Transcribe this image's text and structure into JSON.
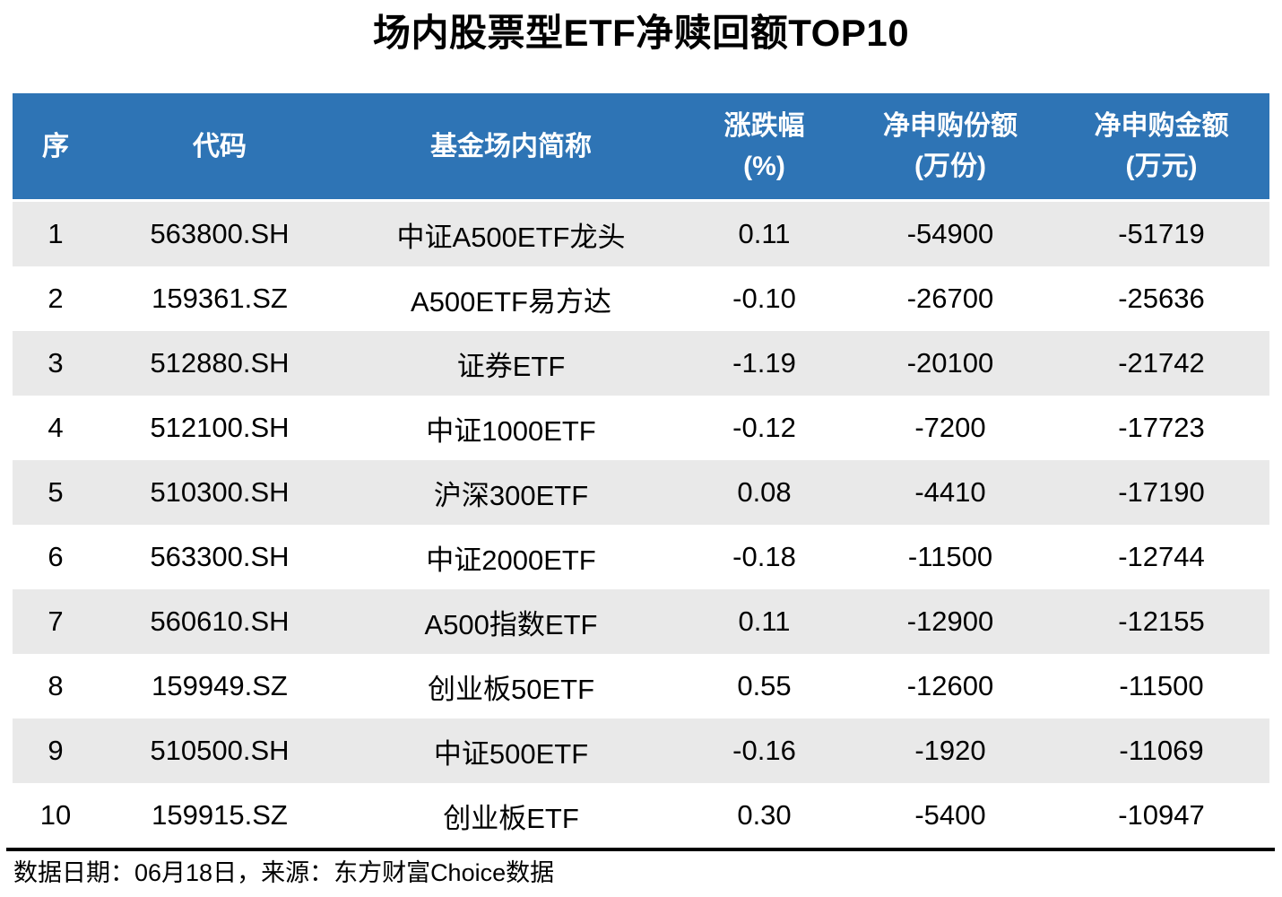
{
  "title": "场内股票型ETF净赎回额TOP10",
  "table": {
    "headers": [
      {
        "line1": "序",
        "line2": ""
      },
      {
        "line1": "代码",
        "line2": ""
      },
      {
        "line1": "基金场内简称",
        "line2": ""
      },
      {
        "line1": "涨跌幅",
        "line2": "(%)"
      },
      {
        "line1": "净申购份额",
        "line2": "(万份)"
      },
      {
        "line1": "净申购金额",
        "line2": "(万元)"
      }
    ],
    "rows": [
      {
        "seq": "1",
        "code": "563800.SH",
        "name": "中证A500ETF龙头",
        "chg": "0.11",
        "shares": "-54900",
        "amount": "-51719"
      },
      {
        "seq": "2",
        "code": "159361.SZ",
        "name": "A500ETF易方达",
        "chg": "-0.10",
        "shares": "-26700",
        "amount": "-25636"
      },
      {
        "seq": "3",
        "code": "512880.SH",
        "name": "证券ETF",
        "chg": "-1.19",
        "shares": "-20100",
        "amount": "-21742"
      },
      {
        "seq": "4",
        "code": "512100.SH",
        "name": "中证1000ETF",
        "chg": "-0.12",
        "shares": "-7200",
        "amount": "-17723"
      },
      {
        "seq": "5",
        "code": "510300.SH",
        "name": "沪深300ETF",
        "chg": "0.08",
        "shares": "-4410",
        "amount": "-17190"
      },
      {
        "seq": "6",
        "code": "563300.SH",
        "name": "中证2000ETF",
        "chg": "-0.18",
        "shares": "-11500",
        "amount": "-12744"
      },
      {
        "seq": "7",
        "code": "560610.SH",
        "name": "A500指数ETF",
        "chg": "0.11",
        "shares": "-12900",
        "amount": "-12155"
      },
      {
        "seq": "8",
        "code": "159949.SZ",
        "name": "创业板50ETF",
        "chg": "0.55",
        "shares": "-12600",
        "amount": "-11500"
      },
      {
        "seq": "9",
        "code": "510500.SH",
        "name": "中证500ETF",
        "chg": "-0.16",
        "shares": "-1920",
        "amount": "-11069"
      },
      {
        "seq": "10",
        "code": "159915.SZ",
        "name": "创业板ETF",
        "chg": "0.30",
        "shares": "-5400",
        "amount": "-10947"
      }
    ]
  },
  "footer": {
    "text": "数据日期：06月18日，来源：东方财富Choice数据"
  },
  "colors": {
    "header_bg": "#2E74B5",
    "header_text": "#FFFFFF",
    "row_alt_bg": "#E9E9E9",
    "row_bg": "#FFFFFF",
    "text": "#000000",
    "rule": "#000000"
  },
  "chart_data": {
    "type": "table",
    "title": "场内股票型ETF净赎回额TOP10",
    "columns": [
      "序",
      "代码",
      "基金场内简称",
      "涨跌幅(%)",
      "净申购份额(万份)",
      "净申购金额(万元)"
    ],
    "rows": [
      [
        1,
        "563800.SH",
        "中证A500ETF龙头",
        0.11,
        -54900,
        -51719
      ],
      [
        2,
        "159361.SZ",
        "A500ETF易方达",
        -0.1,
        -26700,
        -25636
      ],
      [
        3,
        "512880.SH",
        "证券ETF",
        -1.19,
        -20100,
        -21742
      ],
      [
        4,
        "512100.SH",
        "中证1000ETF",
        -0.12,
        -7200,
        -17723
      ],
      [
        5,
        "510300.SH",
        "沪深300ETF",
        0.08,
        -4410,
        -17190
      ],
      [
        6,
        "563300.SH",
        "中证2000ETF",
        -0.18,
        -11500,
        -12744
      ],
      [
        7,
        "560610.SH",
        "A500指数ETF",
        0.11,
        -12900,
        -12155
      ],
      [
        8,
        "159949.SZ",
        "创业板50ETF",
        0.55,
        -12600,
        -11500
      ],
      [
        9,
        "510500.SH",
        "中证500ETF",
        -0.16,
        -1920,
        -11069
      ],
      [
        10,
        "159915.SZ",
        "创业板ETF",
        0.3,
        -5400,
        -10947
      ]
    ],
    "source_note": "数据日期：06月18日，来源：东方财富Choice数据",
    "layout": {
      "striped_rows": "odd-gray",
      "header_style": "blue-bg-white-text",
      "alignment": "center"
    }
  }
}
